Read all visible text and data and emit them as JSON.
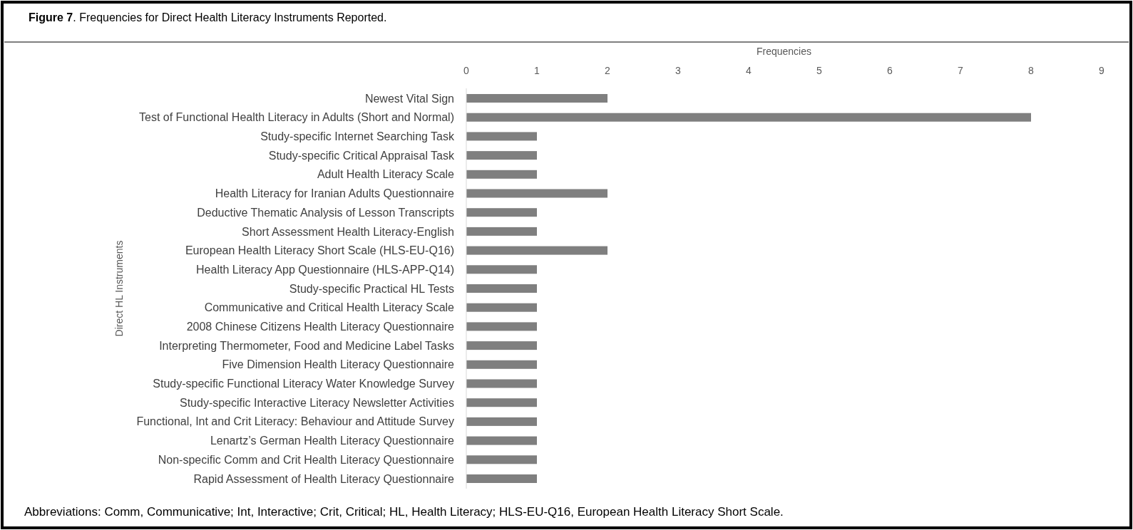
{
  "chart_data": {
    "type": "bar",
    "orientation": "horizontal",
    "title": "Figure 7. Frequencies for Direct Health Literacy Instruments Reported.",
    "xlabel": "Frequencies",
    "ylabel": "Direct HL Instruments",
    "categories": [
      "Newest Vital Sign",
      "Test of Functional Health Literacy in Adults (Short and Normal)",
      "Study-specific Internet Searching Task",
      "Study-specific Critical Appraisal Task",
      "Adult Health Literacy Scale",
      "Health Literacy for Iranian Adults Questionnaire",
      "Deductive Thematic Analysis of Lesson Transcripts",
      "Short Assessment Health Literacy-English",
      "European Health Literacy Short Scale (HLS-EU-Q16)",
      "Health Literacy App Questionnaire (HLS-APP-Q14)",
      "Study-specific Practical HL Tests",
      "Communicative and Critical Health Literacy Scale",
      "2008 Chinese Citizens Health Literacy Questionnaire",
      "Interpreting Thermometer, Food and Medicine Label Tasks",
      "Five Dimension Health Literacy Questionnaire",
      "Study-specific Functional Literacy Water Knowledge Survey",
      "Study-specific Interactive Literacy Newsletter Activities",
      "Functional, Int and Crit Literacy: Behaviour and Attitude Survey",
      "Lenartz’s German Health Literacy Questionnaire",
      "Non-specific Comm and Crit Health Literacy Questionnaire",
      "Rapid Assessment of Health Literacy Questionnaire"
    ],
    "values": [
      2,
      8,
      1,
      1,
      1,
      2,
      1,
      1,
      2,
      1,
      1,
      1,
      1,
      1,
      1,
      1,
      1,
      1,
      1,
      1,
      1
    ],
    "color": "#7f7f7f",
    "xlim": [
      0,
      9
    ],
    "xticks": [
      0,
      1,
      2,
      3,
      4,
      5,
      6,
      7,
      8,
      9
    ],
    "grid": false,
    "annotations": [
      "Abbreviations: Comm, Communicative; Int, Interactive; Crit, Critical; HL, Health Literacy; HLS-EU-Q16, European Health Literacy Short Scale."
    ]
  }
}
